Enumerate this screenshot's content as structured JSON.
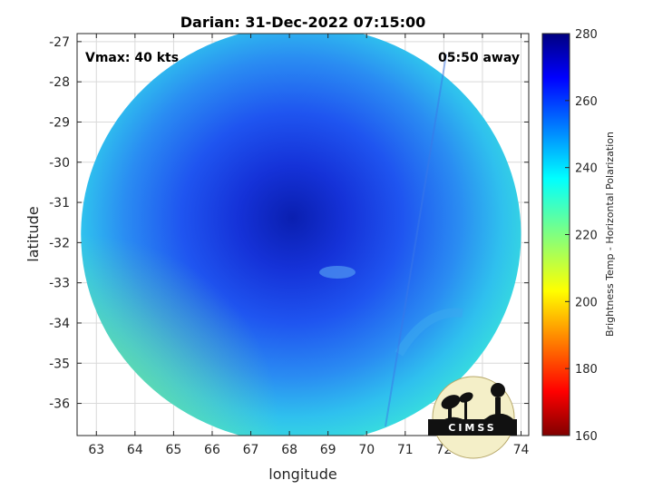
{
  "title": "Darian: 31-Dec-2022 07:15:00",
  "annotations": {
    "vmax": "Vmax: 40 kts",
    "time_away": "05:50 away"
  },
  "axes": {
    "xlabel": "longitude",
    "ylabel": "latitude",
    "xlim": [
      62.5,
      74.2
    ],
    "ylim": [
      -36.8,
      -26.8
    ],
    "xticks": [
      63,
      64,
      65,
      66,
      67,
      68,
      69,
      70,
      71,
      72,
      73,
      74
    ],
    "yticks": [
      -27,
      -28,
      -29,
      -30,
      -31,
      -32,
      -33,
      -34,
      -35,
      -36
    ],
    "grid": true
  },
  "colorbar": {
    "label": "Brightness Temp - Horizontal Polarization",
    "ticks": [
      280,
      260,
      240,
      220,
      200,
      180,
      160
    ],
    "range": [
      160,
      280
    ],
    "colormap": "jet"
  },
  "swath": {
    "center_lon": 68.3,
    "center_lat": -31.8,
    "radius_deg_lon": 5.7,
    "radius_deg_lat": 5.2
  },
  "logo": {
    "text": "CIMSS"
  },
  "colors": {
    "grid": "#d9d9d9",
    "axis": "#262626"
  }
}
